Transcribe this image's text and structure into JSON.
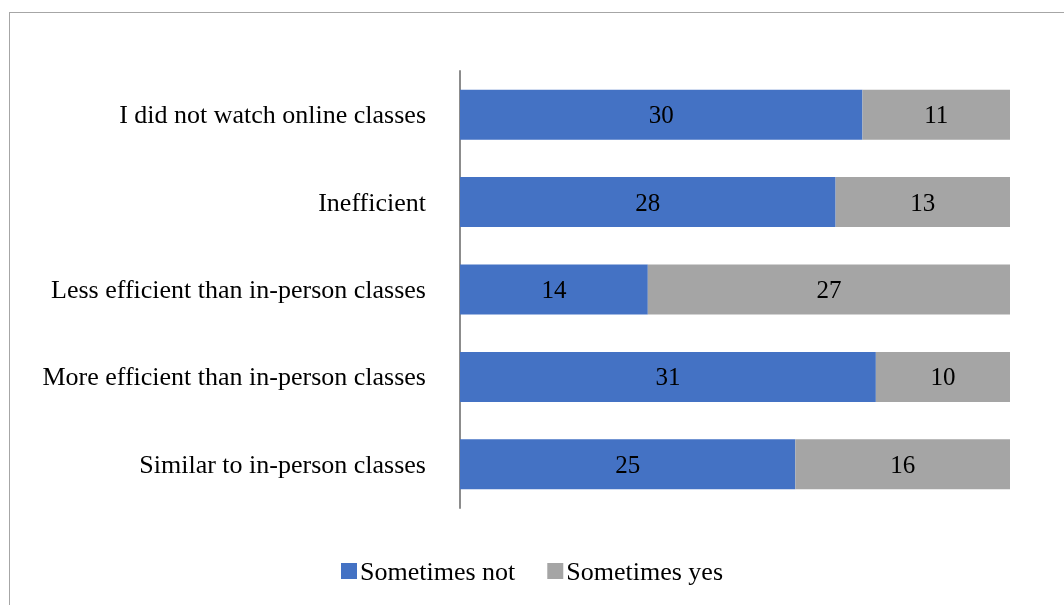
{
  "chart_data": {
    "type": "bar",
    "orientation": "horizontal",
    "stacked": true,
    "categories": [
      "I did not watch online classes",
      "Inefficient",
      "Less efficient than in-person classes",
      "More efficient than in-person classes",
      "Similar to in-person classes"
    ],
    "series": [
      {
        "name": "Sometimes not",
        "color": "#4472c4",
        "values": [
          30,
          28,
          14,
          31,
          25
        ]
      },
      {
        "name": "Sometimes yes",
        "color": "#a5a5a5",
        "values": [
          11,
          13,
          27,
          10,
          16
        ]
      }
    ],
    "data_labels": true,
    "legend": "bottom",
    "tick_labels": "y",
    "grid": false
  }
}
